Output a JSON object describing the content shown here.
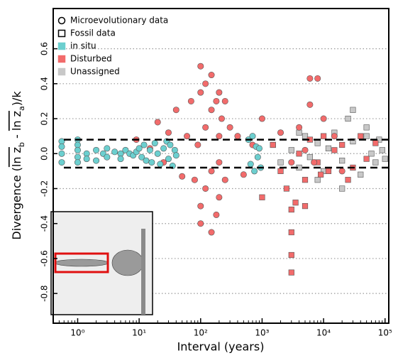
{
  "chart_data": {
    "type": "scatter",
    "x_label": "Interval (years)",
    "y_label_parts": [
      "Divergence (",
      "ln z",
      "b",
      " - ",
      "ln z",
      "a",
      ")/k"
    ],
    "xscale": "log",
    "xlim": [
      0.4,
      115000
    ],
    "xticks": [
      {
        "value": 1,
        "label": "10⁰"
      },
      {
        "value": 10,
        "label": "10¹"
      },
      {
        "value": 100,
        "label": "10²"
      },
      {
        "value": 1000,
        "label": "10³"
      },
      {
        "value": 10000,
        "label": "10⁴"
      },
      {
        "value": 100000,
        "label": "10⁵"
      }
    ],
    "ylim": [
      -0.97,
      0.83
    ],
    "yticks": [
      -0.8,
      -0.6,
      -0.4,
      -0.2,
      {
        "value": 0,
        "label": "0.0"
      },
      0.2,
      0.4,
      0.6
    ],
    "grid": true,
    "reference_lines": [
      0.08,
      -0.08
    ],
    "legend": [
      {
        "label": "Microevolutionary data",
        "marker": "circle",
        "color": "none"
      },
      {
        "label": "Fossil data",
        "marker": "square",
        "color": "none"
      },
      {
        "label": "in situ",
        "marker": "square",
        "color": "#6ccfcf"
      },
      {
        "label": "Disturbed",
        "marker": "square",
        "color": "#f26b6b"
      },
      {
        "label": "Unassigned",
        "marker": "square",
        "color": "#c8c8c8"
      }
    ],
    "series": [
      {
        "marker": "square",
        "color": "#c8c8c8",
        "x": [
          1500,
          2000,
          3000,
          4000,
          5000,
          6000,
          8000,
          10000,
          12000,
          15000,
          20000,
          25000,
          30000,
          40000,
          50000,
          60000,
          70000,
          80000,
          90000,
          100000,
          20000,
          30000,
          50000,
          8000,
          4000
        ],
        "y": [
          0.05,
          -0.05,
          0.02,
          -0.08,
          0.1,
          -0.02,
          0.06,
          -0.1,
          0.03,
          0.12,
          -0.04,
          0.2,
          0.07,
          -0.12,
          0.15,
          0.0,
          -0.05,
          0.08,
          0.02,
          -0.03,
          -0.2,
          0.25,
          0.1,
          -0.15,
          0.12
        ]
      },
      {
        "marker": "square",
        "color": "#f26b6b",
        "x": [
          1000,
          1500,
          2000,
          3000,
          3000,
          3000,
          3000,
          4000,
          5000,
          6000,
          8000,
          10000,
          12000,
          15000,
          20000,
          30000,
          40000,
          50000,
          70000,
          2500,
          3500,
          5000,
          9000,
          25000
        ],
        "y": [
          -0.25,
          0.05,
          -0.1,
          -0.32,
          -0.45,
          -0.58,
          -0.68,
          0.0,
          -0.15,
          0.08,
          -0.05,
          0.1,
          -0.1,
          0.02,
          0.05,
          -0.08,
          0.1,
          -0.03,
          0.06,
          -0.2,
          -0.28,
          -0.3,
          -0.12,
          -0.15
        ]
      },
      {
        "marker": "circle",
        "color": "#f26b6b",
        "x": [
          9,
          15,
          20,
          25,
          30,
          40,
          50,
          60,
          70,
          80,
          90,
          100,
          100,
          100,
          100,
          120,
          120,
          120,
          150,
          150,
          150,
          150,
          180,
          180,
          200,
          200,
          200,
          200,
          220,
          250,
          250,
          300,
          400,
          500,
          700,
          1000,
          2000,
          3000,
          4000,
          5000,
          6000,
          8000,
          10000,
          15000,
          20000,
          6000,
          7000
        ],
        "y": [
          0.08,
          0.03,
          0.18,
          -0.05,
          0.12,
          0.25,
          -0.13,
          0.1,
          0.3,
          -0.15,
          0.05,
          0.5,
          0.35,
          -0.3,
          -0.4,
          0.4,
          -0.2,
          0.15,
          0.45,
          -0.45,
          0.25,
          -0.1,
          0.3,
          -0.35,
          0.35,
          -0.25,
          0.1,
          -0.05,
          0.2,
          0.3,
          -0.15,
          0.15,
          0.1,
          -0.12,
          0.05,
          0.2,
          0.12,
          -0.05,
          0.15,
          0.02,
          0.28,
          0.43,
          0.2,
          0.1,
          -0.1,
          0.43,
          -0.05
        ]
      },
      {
        "marker": "circle",
        "color": "#6ccfcf",
        "x": [
          0.55,
          0.55,
          0.55,
          0.55,
          1,
          1,
          1,
          1,
          1,
          1.4,
          1.4,
          2,
          2,
          2.6,
          3,
          3,
          4,
          5,
          5,
          6,
          7,
          8,
          9,
          10,
          11,
          12,
          13,
          15,
          16,
          18,
          20,
          22,
          25,
          28,
          30,
          32,
          35,
          38,
          40,
          600,
          650,
          700,
          750,
          800,
          850,
          900,
          950
        ],
        "y": [
          0.07,
          0.04,
          0.0,
          -0.05,
          0.08,
          0.05,
          0.02,
          -0.02,
          -0.05,
          0.0,
          -0.03,
          0.02,
          -0.04,
          0.0,
          0.03,
          -0.02,
          0.01,
          0.0,
          -0.03,
          0.02,
          0.0,
          -0.01,
          0.01,
          0.03,
          -0.02,
          0.05,
          -0.04,
          0.02,
          -0.05,
          0.06,
          0.0,
          -0.06,
          0.03,
          0.07,
          -0.03,
          0.05,
          -0.07,
          0.02,
          -0.01,
          0.08,
          -0.06,
          0.1,
          -0.1,
          0.04,
          -0.02,
          0.03,
          -0.08
        ]
      }
    ]
  }
}
